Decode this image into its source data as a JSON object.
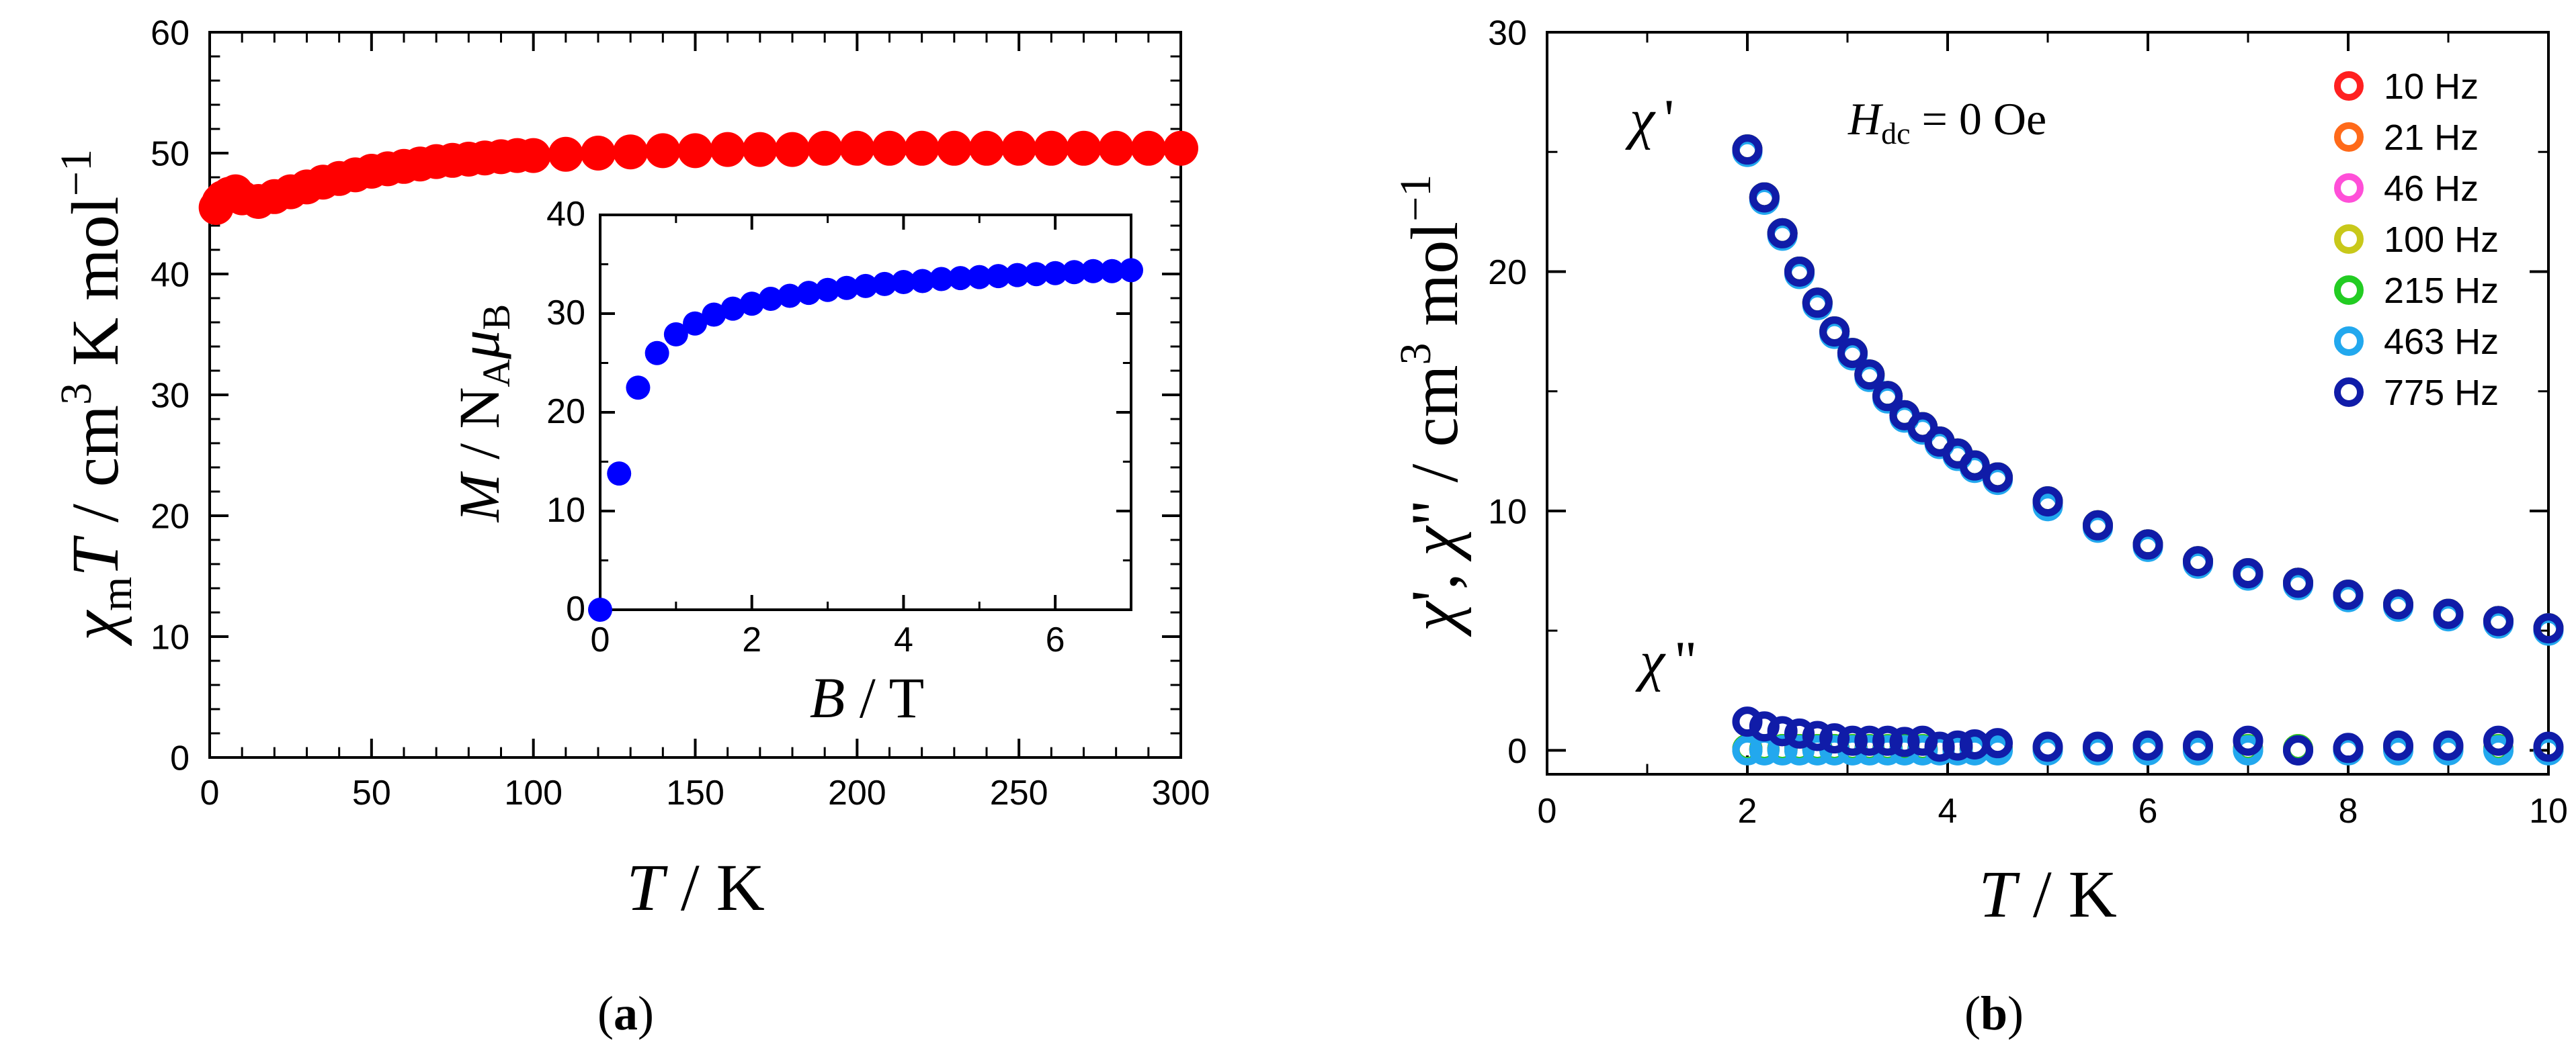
{
  "panel_labels": {
    "a_open": "(",
    "a_letter": "a",
    "a_close": ")",
    "b_open": "(",
    "b_letter": "b",
    "b_close": ")"
  },
  "axis_titles": {
    "a_y_sym": "χ",
    "a_y_sub": "m",
    "a_y_T": "T",
    "a_y_rest1": " / cm",
    "a_y_sup3": "3",
    "a_y_rest2": " K mol",
    "a_y_supm1": "−1",
    "a_x_T": "T",
    "a_x_rest": " / K",
    "inset_y_M": "M",
    "inset_y_mid": " / N",
    "inset_y_subA": "A",
    "inset_y_mu": "μ",
    "inset_y_subB": "B",
    "inset_x_B": "B",
    "inset_x_rest": " / T",
    "b_y_chi1": "χ",
    "b_y_p1": "'",
    "b_y_comma": ", ",
    "b_y_chi2": "χ",
    "b_y_p2": "\"",
    "b_y_rest1": " / cm",
    "b_y_sup3": "3",
    "b_y_rest2": " mol",
    "b_y_supm1": "−1",
    "b_x_T": "T",
    "b_x_rest": " / K"
  },
  "annotations": {
    "chi_prime_sym": "χ",
    "chi_prime_mark": "'",
    "chi_dprime_sym": "χ",
    "chi_dprime_mark": "\"",
    "hdc_H": "H",
    "hdc_sub": "dc",
    "hdc_rest": " = 0 Oe"
  },
  "chart_data": [
    {
      "id": "a-main",
      "type": "scatter",
      "title": "",
      "xlabel": "T / K",
      "ylabel": "χmT / cm3 K mol−1",
      "xlim": [
        0,
        300
      ],
      "ylim": [
        0,
        60
      ],
      "xticks": [
        "0",
        "50",
        "100",
        "150",
        "200",
        "250",
        "300"
      ],
      "yticks": [
        "0",
        "10",
        "20",
        "30",
        "40",
        "50",
        "60"
      ],
      "series": [
        {
          "name": "χmT",
          "color": "#ff0000",
          "x": [
            2,
            3,
            4,
            6,
            8,
            10,
            15,
            20,
            25,
            30,
            35,
            40,
            45,
            50,
            55,
            60,
            65,
            70,
            75,
            80,
            85,
            90,
            95,
            100,
            110,
            120,
            130,
            140,
            150,
            160,
            170,
            180,
            190,
            200,
            210,
            220,
            230,
            240,
            250,
            260,
            270,
            280,
            290,
            300
          ],
          "y": [
            45.5,
            46.0,
            46.3,
            46.6,
            46.8,
            46.3,
            46.0,
            46.4,
            46.8,
            47.2,
            47.6,
            47.9,
            48.2,
            48.5,
            48.7,
            48.9,
            49.1,
            49.3,
            49.4,
            49.5,
            49.6,
            49.7,
            49.8,
            49.8,
            49.9,
            50.0,
            50.1,
            50.2,
            50.2,
            50.3,
            50.3,
            50.3,
            50.4,
            50.4,
            50.4,
            50.4,
            50.4,
            50.4,
            50.4,
            50.4,
            50.4,
            50.4,
            50.4,
            50.4
          ]
        }
      ]
    },
    {
      "id": "a-inset",
      "type": "scatter",
      "title": "",
      "xlabel": "B / T",
      "ylabel": "M / NA μB",
      "xlim": [
        0,
        7
      ],
      "ylim": [
        0,
        40
      ],
      "xticks": [
        "0",
        "2",
        "4",
        "6"
      ],
      "yticks": [
        "0",
        "10",
        "20",
        "30",
        "40"
      ],
      "series": [
        {
          "name": "M",
          "color": "#0000ff",
          "x": [
            0,
            0.25,
            0.5,
            0.75,
            1.0,
            1.25,
            1.5,
            1.75,
            2.0,
            2.25,
            2.5,
            2.75,
            3.0,
            3.25,
            3.5,
            3.75,
            4.0,
            4.25,
            4.5,
            4.75,
            5.0,
            5.25,
            5.5,
            5.75,
            6.0,
            6.25,
            6.5,
            6.75,
            7.0
          ],
          "y": [
            0,
            13.8,
            22.5,
            26.0,
            27.9,
            29.0,
            29.9,
            30.5,
            31.0,
            31.5,
            31.8,
            32.1,
            32.4,
            32.6,
            32.8,
            33.0,
            33.2,
            33.3,
            33.5,
            33.6,
            33.7,
            33.8,
            33.9,
            34.0,
            34.1,
            34.2,
            34.3,
            34.3,
            34.4
          ]
        }
      ]
    },
    {
      "id": "b-main",
      "type": "scatter",
      "title": "",
      "xlabel": "T / K",
      "ylabel": "χ', χ\" / cm3 mol−1",
      "xlim": [
        0,
        10
      ],
      "ylim": [
        -1,
        30
      ],
      "xticks": [
        "0",
        "2",
        "4",
        "6",
        "8",
        "10"
      ],
      "yticks": [
        "0",
        "10",
        "20",
        "30"
      ],
      "legend": [
        "10 Hz",
        "21 Hz",
        "46 Hz",
        "100 Hz",
        "215 Hz",
        "463 Hz",
        "775 Hz"
      ],
      "legend_colors": [
        "#ff2020",
        "#ff6a1a",
        "#ff4fd8",
        "#c8c81a",
        "#22cc22",
        "#22a8ee",
        "#101ca8"
      ],
      "legend_position": "top-right",
      "x": [
        2.0,
        2.17,
        2.35,
        2.52,
        2.7,
        2.87,
        3.05,
        3.22,
        3.4,
        3.57,
        3.75,
        3.92,
        4.1,
        4.27,
        4.5,
        5.0,
        5.5,
        6.0,
        6.5,
        7.0,
        7.5,
        8.0,
        8.5,
        9.0,
        9.5,
        10.0
      ],
      "series": [
        {
          "name": "χ' 10 Hz",
          "color": "#ff2020",
          "values": [
            25.1,
            23.1,
            21.6,
            20.0,
            18.7,
            17.5,
            16.6,
            15.7,
            14.8,
            14.0,
            13.5,
            12.9,
            12.4,
            11.9,
            11.4,
            10.4,
            9.4,
            8.6,
            7.9,
            7.4,
            7.0,
            6.5,
            6.1,
            5.7,
            5.4,
            5.1
          ]
        },
        {
          "name": "χ' 21 Hz",
          "color": "#ff6a1a",
          "values": [
            25.1,
            23.1,
            21.6,
            20.0,
            18.7,
            17.5,
            16.6,
            15.7,
            14.8,
            14.0,
            13.5,
            12.9,
            12.4,
            11.9,
            11.4,
            10.4,
            9.4,
            8.6,
            7.9,
            7.4,
            7.0,
            6.5,
            6.1,
            5.7,
            5.4,
            5.1
          ]
        },
        {
          "name": "χ' 46 Hz",
          "color": "#ff4fd8",
          "values": [
            25.1,
            23.1,
            21.6,
            20.0,
            18.7,
            17.5,
            16.6,
            15.7,
            14.8,
            14.0,
            13.5,
            12.9,
            12.4,
            11.9,
            11.4,
            10.4,
            9.4,
            8.6,
            7.9,
            7.4,
            7.0,
            6.5,
            6.1,
            5.7,
            5.4,
            5.1
          ]
        },
        {
          "name": "χ' 100 Hz",
          "color": "#c8c81a",
          "values": [
            25.1,
            23.1,
            21.6,
            20.0,
            18.7,
            17.5,
            16.6,
            15.7,
            14.8,
            14.0,
            13.5,
            12.9,
            12.4,
            11.9,
            11.4,
            10.4,
            9.4,
            8.6,
            7.9,
            7.4,
            7.0,
            6.5,
            6.1,
            5.7,
            5.4,
            5.1
          ]
        },
        {
          "name": "χ' 215 Hz",
          "color": "#22cc22",
          "values": [
            25.1,
            23.1,
            21.6,
            20.0,
            18.7,
            17.5,
            16.6,
            15.7,
            14.8,
            14.0,
            13.5,
            12.9,
            12.4,
            11.9,
            11.4,
            10.4,
            9.4,
            8.6,
            7.9,
            7.4,
            7.0,
            6.5,
            6.1,
            5.7,
            5.4,
            5.1
          ]
        },
        {
          "name": "χ' 463 Hz",
          "color": "#22a8ee",
          "values": [
            25.0,
            23.0,
            21.5,
            19.9,
            18.6,
            17.4,
            16.5,
            15.6,
            14.7,
            13.9,
            13.4,
            12.8,
            12.3,
            11.8,
            11.3,
            10.2,
            9.3,
            8.5,
            7.8,
            7.3,
            6.9,
            6.4,
            6.0,
            5.6,
            5.3,
            5.0
          ]
        },
        {
          "name": "χ' 775 Hz",
          "color": "#101ca8",
          "values": [
            25.1,
            23.1,
            21.6,
            20.0,
            18.7,
            17.5,
            16.6,
            15.7,
            14.8,
            14.0,
            13.5,
            12.9,
            12.4,
            11.9,
            11.4,
            10.4,
            9.4,
            8.6,
            7.9,
            7.4,
            7.0,
            6.5,
            6.1,
            5.7,
            5.4,
            5.1
          ]
        },
        {
          "name": "χ\" 10 Hz",
          "color": "#ff2020",
          "values": [
            0.05,
            0.05,
            0.05,
            0.05,
            0.05,
            0.05,
            0.05,
            0.05,
            0.05,
            0.05,
            0.05,
            0.05,
            0.05,
            0.05,
            0.05,
            0.05,
            0.05,
            0.05,
            0.05,
            0.05,
            0.05,
            0.05,
            0.05,
            0.05,
            0.05,
            0.05
          ]
        },
        {
          "name": "χ\" 21 Hz",
          "color": "#ff6a1a",
          "values": [
            0.05,
            0.05,
            0.05,
            0.05,
            0.05,
            0.05,
            0.05,
            0.05,
            0.05,
            0.05,
            0.05,
            0.05,
            0.05,
            0.05,
            0.05,
            0.05,
            0.05,
            0.05,
            0.05,
            0.05,
            0.05,
            0.05,
            0.05,
            0.05,
            0.05,
            0.05
          ]
        },
        {
          "name": "χ\" 46 Hz",
          "color": "#ff4fd8",
          "values": [
            0.05,
            0.05,
            0.05,
            0.05,
            0.05,
            0.05,
            0.05,
            0.05,
            0.05,
            0.05,
            0.05,
            0.05,
            0.05,
            0.05,
            0.05,
            0.05,
            0.05,
            0.05,
            0.05,
            0.05,
            0.05,
            0.05,
            0.05,
            0.05,
            0.05,
            0.05
          ]
        },
        {
          "name": "χ\" 100 Hz",
          "color": "#c8c81a",
          "values": [
            0.05,
            0.05,
            0.05,
            0.05,
            0.05,
            0.05,
            0.05,
            0.05,
            0.05,
            0.05,
            0.05,
            0.05,
            0.05,
            0.05,
            0.05,
            0.05,
            0.05,
            0.05,
            0.05,
            0.05,
            0.05,
            0.05,
            0.05,
            0.05,
            0.05,
            0.05
          ]
        },
        {
          "name": "χ\" 215 Hz",
          "color": "#22cc22",
          "values": [
            0.05,
            0.05,
            0.05,
            0.05,
            0.05,
            0.05,
            0.05,
            0.05,
            0.05,
            0.05,
            0.05,
            0.05,
            0.05,
            0.05,
            0.05,
            0.05,
            0.05,
            0.05,
            0.05,
            0.05,
            0.05,
            0.05,
            0.05,
            0.05,
            0.05,
            0.05
          ]
        },
        {
          "name": "χ\" 463 Hz",
          "color": "#22a8ee",
          "values": [
            0.0,
            0.0,
            0.0,
            0.0,
            0.0,
            0.0,
            0.0,
            0.0,
            0.0,
            0.0,
            0.0,
            0.0,
            0.0,
            0.0,
            0.0,
            0.0,
            0.0,
            0.0,
            0.0,
            0.0,
            0.0,
            0.0,
            0.0,
            0.0,
            0.0,
            0.0
          ]
        },
        {
          "name": "χ\" 775 Hz",
          "color": "#101ca8",
          "values": [
            1.2,
            1.0,
            0.8,
            0.7,
            0.6,
            0.5,
            0.4,
            0.4,
            0.4,
            0.35,
            0.4,
            0.15,
            0.2,
            0.25,
            0.3,
            0.15,
            0.15,
            0.2,
            0.2,
            0.4,
            0.0,
            0.1,
            0.2,
            0.2,
            0.4,
            0.15
          ]
        }
      ]
    }
  ]
}
